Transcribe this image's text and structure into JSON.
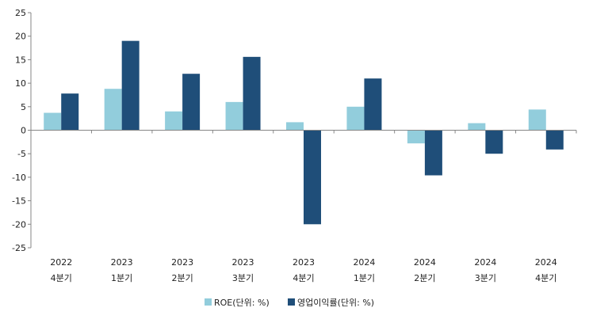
{
  "chart_data": {
    "type": "bar",
    "categories": [
      [
        "2022",
        "4분기"
      ],
      [
        "2023",
        "1분기"
      ],
      [
        "2023",
        "2분기"
      ],
      [
        "2023",
        "3분기"
      ],
      [
        "2023",
        "4분기"
      ],
      [
        "2024",
        "1분기"
      ],
      [
        "2024",
        "2분기"
      ],
      [
        "2024",
        "3분기"
      ],
      [
        "2024",
        "4분기"
      ]
    ],
    "series": [
      {
        "name": "ROE(단위: %)",
        "color": "#92cddc",
        "values": [
          3.7,
          8.8,
          4.0,
          6.0,
          1.7,
          5.0,
          -2.8,
          1.5,
          4.4
        ]
      },
      {
        "name": "영업이익률(단위: %)",
        "color": "#1f4e79",
        "values": [
          7.8,
          19.0,
          12.0,
          15.6,
          -20.0,
          11.0,
          -9.6,
          -5.0,
          -4.1
        ]
      }
    ],
    "ylim": [
      -25,
      25
    ],
    "yticks": [
      25,
      20,
      15,
      10,
      5,
      0,
      -5,
      -10,
      -15,
      -20,
      -25
    ],
    "grid": false,
    "legend_position": "bottom"
  }
}
